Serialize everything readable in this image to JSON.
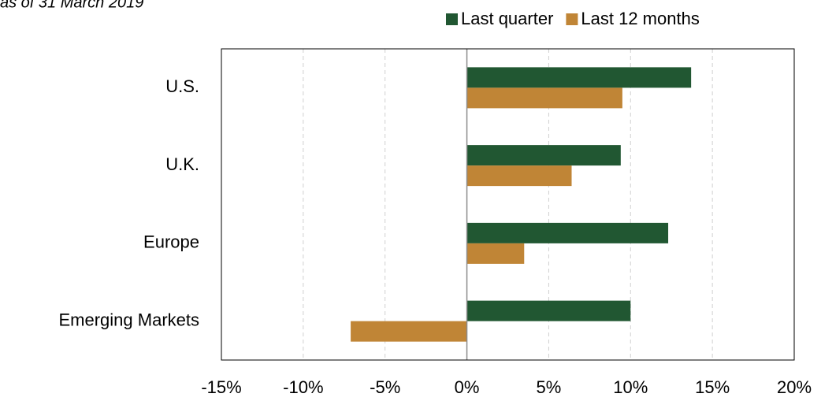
{
  "chart_data": {
    "type": "barh",
    "subtitle": "as of 31 March 2019",
    "categories": [
      "U.S.",
      "U.K.",
      "Europe",
      "Emerging Markets"
    ],
    "series": [
      {
        "name": "Last quarter",
        "color": "#215732",
        "values": [
          13.7,
          9.4,
          12.3,
          10.0
        ]
      },
      {
        "name": "Last 12 months",
        "color": "#c08536",
        "values": [
          9.5,
          6.4,
          3.5,
          -7.1
        ]
      }
    ],
    "xlim": [
      -15,
      20
    ],
    "xticks": [
      {
        "value": -15,
        "label": "-15%"
      },
      {
        "value": -10,
        "label": "-10%"
      },
      {
        "value": -5,
        "label": "-5%"
      },
      {
        "value": 0,
        "label": "0%"
      },
      {
        "value": 5,
        "label": "5%"
      },
      {
        "value": 10,
        "label": "10%"
      },
      {
        "value": 15,
        "label": "15%"
      },
      {
        "value": 20,
        "label": "20%"
      }
    ],
    "grid": true,
    "legend": "top-right"
  }
}
